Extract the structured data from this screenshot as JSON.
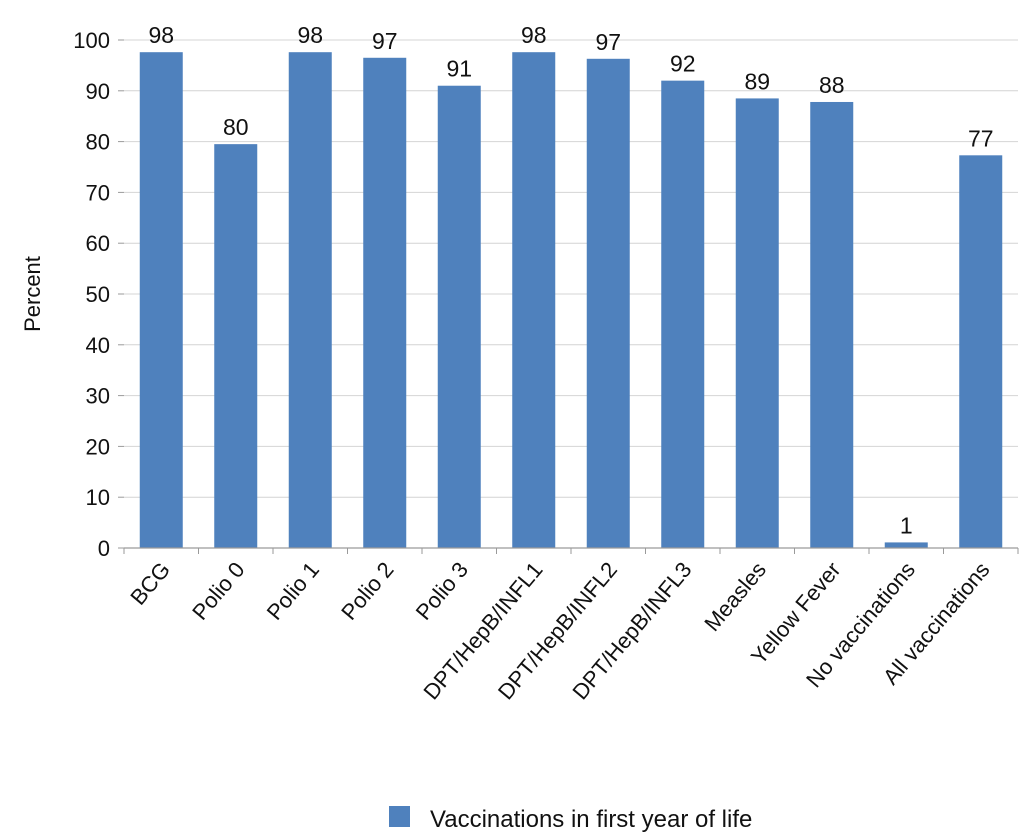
{
  "chart_data": {
    "type": "bar",
    "categories": [
      "BCG",
      "Polio 0",
      "Polio 1",
      "Polio 2",
      "Polio 3",
      "DPT/HepB/INFL1",
      "DPT/HepB/INFL2",
      "DPT/HepB/INFL3",
      "Measles",
      "Yellow Fever",
      "No vaccinations",
      "All vaccinations"
    ],
    "series": [
      {
        "name": "Vaccinations in first year of life",
        "values": [
          98,
          80,
          98,
          97,
          91,
          98,
          97,
          92,
          89,
          88,
          1,
          77
        ],
        "display_values": [
          97.6,
          79.5,
          97.6,
          96.5,
          91.0,
          97.6,
          96.3,
          92.0,
          88.5,
          87.8,
          1.1,
          77.3
        ],
        "color": "#4f81bd"
      }
    ],
    "xlabel": "",
    "ylabel": "Percent",
    "ylim": [
      0,
      100
    ],
    "yticks": [
      0,
      10,
      20,
      30,
      40,
      50,
      60,
      70,
      80,
      90,
      100
    ],
    "grid": "horizontal",
    "legend": "bottom"
  }
}
